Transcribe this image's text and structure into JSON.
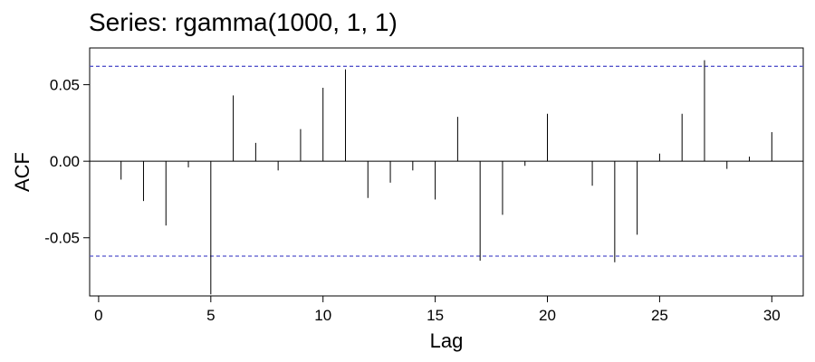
{
  "chart_data": {
    "type": "bar",
    "title": "Series: rgamma(1000, 1, 1)",
    "xlabel": "Lag",
    "ylabel": "ACF",
    "xlim": [
      -0.4,
      31.4
    ],
    "ylim": [
      -0.088,
      0.074
    ],
    "x_ticks": [
      0,
      5,
      10,
      15,
      20,
      25,
      30
    ],
    "y_ticks": [
      0.05,
      0.0,
      -0.05
    ],
    "y_tick_labels": [
      "0.05",
      "0.00",
      "-0.05"
    ],
    "x_tick_labels": [
      "0",
      "5",
      "10",
      "15",
      "20",
      "25",
      "30"
    ],
    "confidence_bound": 0.062,
    "bound_color": "#5555cc",
    "lags": [
      1,
      2,
      3,
      4,
      5,
      6,
      7,
      8,
      9,
      10,
      11,
      12,
      13,
      14,
      15,
      16,
      17,
      18,
      19,
      20,
      21,
      22,
      23,
      24,
      25,
      26,
      27,
      28,
      29,
      30
    ],
    "values": [
      -0.012,
      -0.026,
      -0.042,
      -0.004,
      -0.087,
      0.043,
      0.012,
      -0.006,
      0.021,
      0.048,
      0.06,
      -0.024,
      -0.014,
      -0.006,
      -0.025,
      0.029,
      -0.065,
      -0.035,
      -0.003,
      0.031,
      0.0,
      -0.016,
      -0.066,
      -0.048,
      0.005,
      0.031,
      0.066,
      -0.005,
      0.003,
      0.019
    ]
  }
}
